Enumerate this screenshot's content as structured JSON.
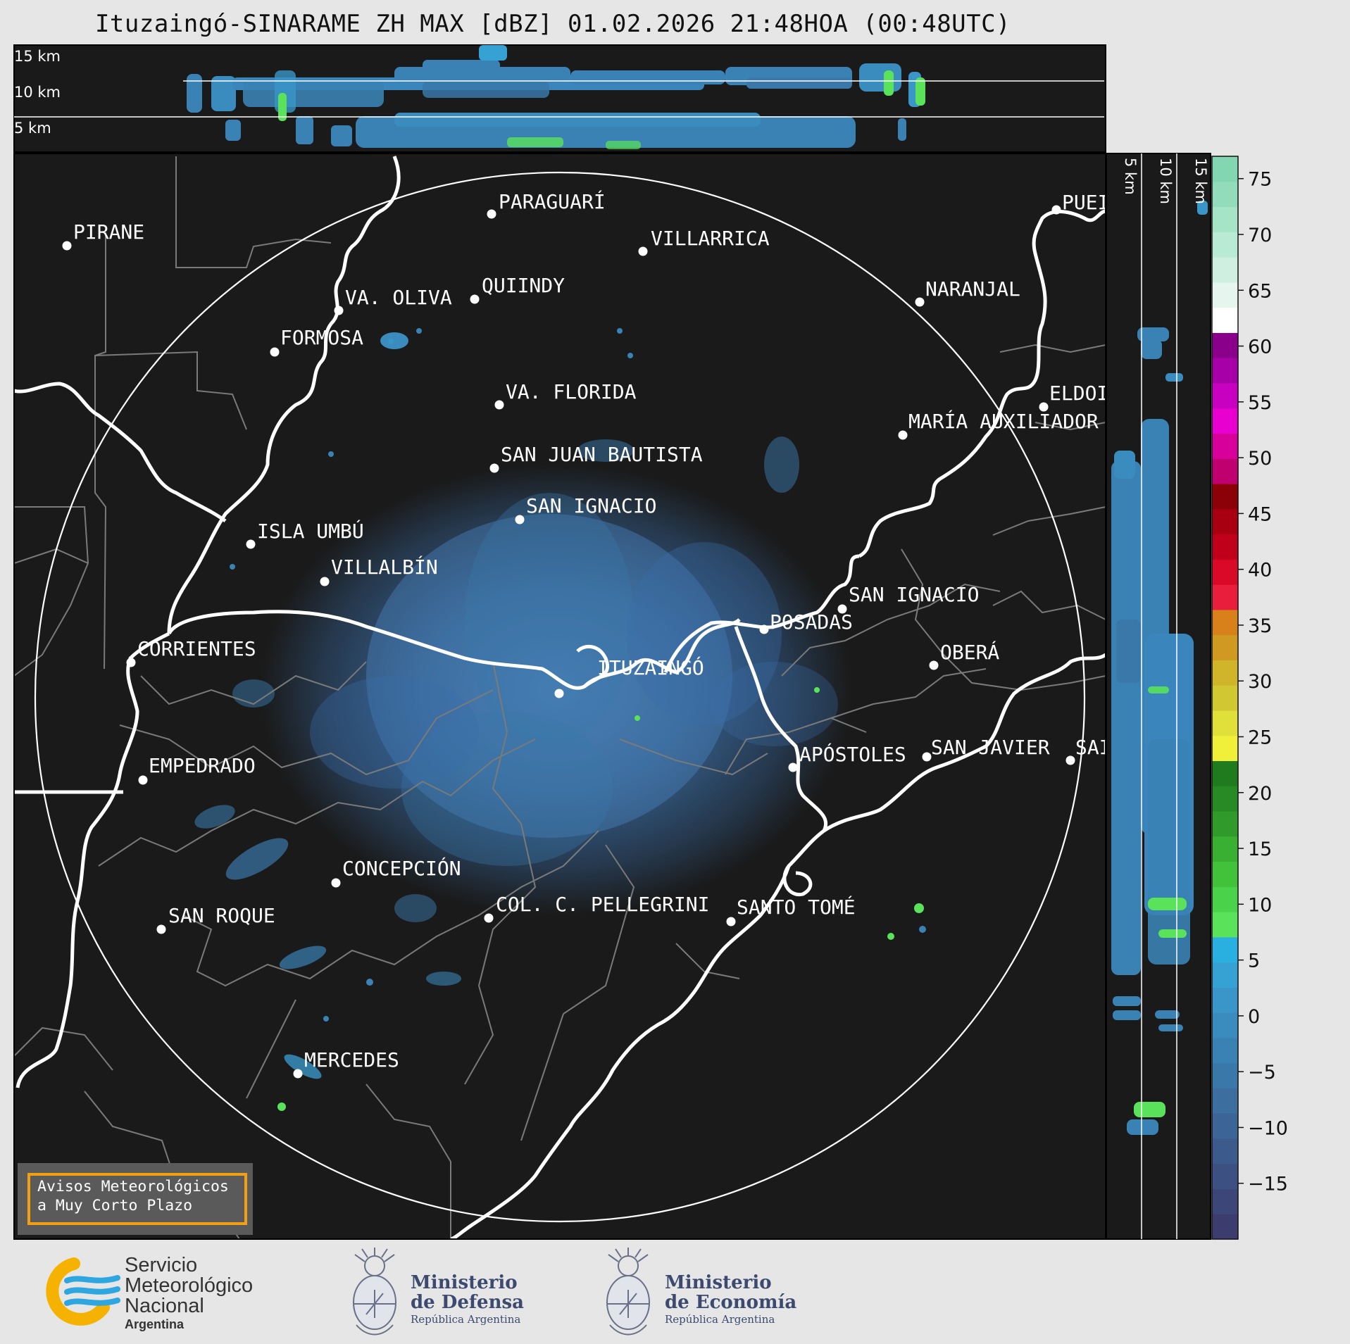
{
  "title": "Ituzaingó-SINARAME ZH MAX [dBZ] 01.02.2026 21:48HOA (00:48UTC)",
  "top_profile": {
    "height_labels": [
      "15 km",
      "10 km",
      "5 km"
    ]
  },
  "side_profile": {
    "height_labels": [
      "5 km",
      "10 km",
      "15 km"
    ]
  },
  "cities": [
    {
      "name": "PARAGUARÍ"
    },
    {
      "name": "PIRANE"
    },
    {
      "name": "VILLARRICA"
    },
    {
      "name": "QUIINDY"
    },
    {
      "name": "VA. OLIVA"
    },
    {
      "name": "NARANJAL"
    },
    {
      "name": "FORMOSA"
    },
    {
      "name": "PUEI"
    },
    {
      "name": "VA. FLORIDA"
    },
    {
      "name": "ELDOI"
    },
    {
      "name": "MARÍA AUXILIADOR"
    },
    {
      "name": "SAN JUAN BAUTISTA"
    },
    {
      "name": "SAN IGNACIO"
    },
    {
      "name": "ISLA UMBÚ"
    },
    {
      "name": "VILLALBÍN"
    },
    {
      "name": "SAN IGNACIO"
    },
    {
      "name": "POSADAS"
    },
    {
      "name": "CORRIENTES"
    },
    {
      "name": "ITUZAINGÓ"
    },
    {
      "name": "OBERÁ"
    },
    {
      "name": "APÓSTOLES"
    },
    {
      "name": "SAN JAVIER"
    },
    {
      "name": "SAI"
    },
    {
      "name": "EMPEDRADO"
    },
    {
      "name": "CONCEPCIÓN"
    },
    {
      "name": "COL. C. PELLEGRINI"
    },
    {
      "name": "SANTO TOMÉ"
    },
    {
      "name": "SAN ROQUE"
    },
    {
      "name": "MERCEDES"
    }
  ],
  "colorbar": {
    "ticks": [
      "75",
      "70",
      "65",
      "60",
      "55",
      "50",
      "45",
      "40",
      "35",
      "30",
      "25",
      "20",
      "15",
      "10",
      "5",
      "0",
      "−5",
      "−10",
      "−15"
    ],
    "colors": [
      "#3c3c6e",
      "#3c4678",
      "#3c5082",
      "#3c5a8c",
      "#3c6496",
      "#3c6ea0",
      "#3a78aa",
      "#3a82b4",
      "#3a8cbe",
      "#3a96c8",
      "#36a2d4",
      "#2ab0e0",
      "#5ae25a",
      "#4ad24a",
      "#42c23a",
      "#3ab032",
      "#309a2a",
      "#288a24",
      "#207a1e",
      "#f0f03a",
      "#e0e03a",
      "#d0c832",
      "#d0b42a",
      "#d09a22",
      "#d8801a",
      "#e81e3c",
      "#d80a28",
      "#c0001a",
      "#a80010",
      "#8c0008",
      "#c0006e",
      "#d8009a",
      "#e800d0",
      "#c800c0",
      "#a800a8",
      "#8a008a",
      "#ffffff",
      "#e6f6ee",
      "#cff0e0",
      "#b8ead4",
      "#a6e4c8",
      "#92dcbc",
      "#82d6b2"
    ]
  },
  "warning": {
    "line1": "Avisos Meteorológicos",
    "line2": "a Muy Corto Plazo"
  },
  "logos": {
    "smn": {
      "line1": "Servicio",
      "line2": "Meteorológico",
      "line3": "Nacional",
      "line4": "Argentina"
    },
    "defensa": {
      "line1": "Ministerio",
      "line2": "de Defensa",
      "line3": "República Argentina"
    },
    "economia": {
      "line1": "Ministerio",
      "line2": "de Economía",
      "line3": "República Argentina"
    }
  }
}
